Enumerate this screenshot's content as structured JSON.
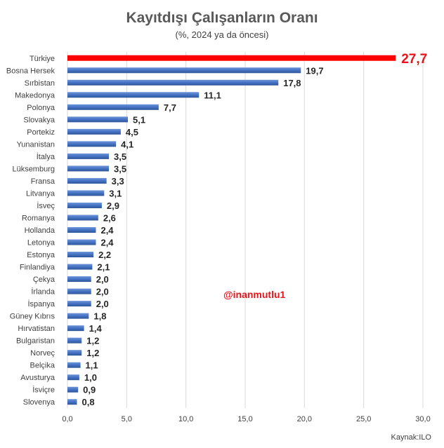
{
  "chart_data": {
    "type": "bar",
    "orientation": "horizontal",
    "title": "Kayıtdışı Çalışanların Oranı",
    "subtitle": "(%, 2024 ya da öncesi)",
    "categories": [
      "Türkiye",
      "Bosna Hersek",
      "Sırbistan",
      "Makedonya",
      "Polonya",
      "Slovakya",
      "Portekiz",
      "Yunanistan",
      "İtalya",
      "Lüksemburg",
      "Fransa",
      "Litvanya",
      "İsveç",
      "Romanya",
      "Hollanda",
      "Letonya",
      "Estonya",
      "Finlandiya",
      "Çekya",
      "İrlanda",
      "İspanya",
      "Güney Kıbrıs",
      "Hırvatistan",
      "Bulgaristan",
      "Norveç",
      "Belçika",
      "Avusturya",
      "İsviçre",
      "Slovenya"
    ],
    "values": [
      27.7,
      19.7,
      17.8,
      11.1,
      7.7,
      5.1,
      4.5,
      4.1,
      3.5,
      3.5,
      3.3,
      3.1,
      2.9,
      2.6,
      2.4,
      2.4,
      2.2,
      2.1,
      2.0,
      2.0,
      2.0,
      1.8,
      1.4,
      1.2,
      1.2,
      1.1,
      1.0,
      0.9,
      0.8
    ],
    "value_labels": [
      "27,7",
      "19,7",
      "17,8",
      "11,1",
      "7,7",
      "5,1",
      "4,5",
      "4,1",
      "3,5",
      "3,5",
      "3,3",
      "3,1",
      "2,9",
      "2,6",
      "2,4",
      "2,4",
      "2,2",
      "2,1",
      "2,0",
      "2,0",
      "2,0",
      "1,8",
      "1,4",
      "1,2",
      "1,2",
      "1,1",
      "1,0",
      "0,9",
      "0,8"
    ],
    "xlim": [
      0,
      30
    ],
    "xticks": [
      0,
      5,
      10,
      15,
      20,
      25,
      30
    ],
    "xtick_labels": [
      "0,0",
      "5,0",
      "10,0",
      "15,0",
      "20,0",
      "25,0",
      "30,0"
    ],
    "grid": true,
    "colors": {
      "bar": "#4472c4",
      "highlight": "#ff0000",
      "highlight_label": "#e8141a"
    },
    "highlight_category": "Türkiye"
  },
  "watermark": "@inanmutlu1",
  "source": "Kaynak:ILO"
}
